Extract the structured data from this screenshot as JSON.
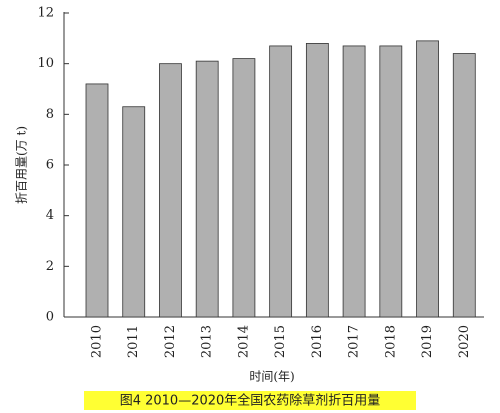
{
  "chart_data": {
    "type": "bar",
    "title": "图4  2010—2020年全国农药除草剂折百用量",
    "x_label": "时间(年)",
    "y_label": "折百用量(万 t)",
    "categories": [
      "2010",
      "2011",
      "2012",
      "2013",
      "2014",
      "2015",
      "2016",
      "2017",
      "2018",
      "2019",
      "2020"
    ],
    "values": [
      9.2,
      8.3,
      10.0,
      10.1,
      10.2,
      10.7,
      10.8,
      10.7,
      10.7,
      10.9,
      10.4
    ],
    "color": "#b0b0b0",
    "ylim": [
      0,
      12
    ],
    "yticks": [
      0,
      2,
      4,
      6,
      8,
      10,
      12
    ],
    "grid": false
  }
}
